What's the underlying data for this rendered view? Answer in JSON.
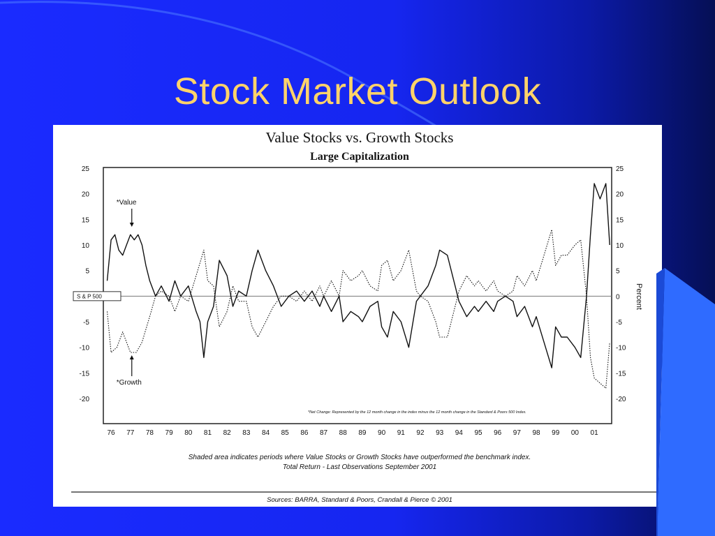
{
  "slide": {
    "title": "Stock Market Outlook",
    "colors": {
      "background": "#1626f0",
      "title": "#ffd36a",
      "accent": "#2b5cff"
    }
  },
  "chart_data": {
    "type": "line",
    "title": "Value Stocks vs. Growth Stocks",
    "subtitle": "Large Capitalization",
    "ylabel": "Percent",
    "ylim": [
      -20,
      25
    ],
    "yticks": [
      25,
      20,
      15,
      10,
      5,
      0,
      -5,
      -10,
      -15,
      -20
    ],
    "xticks": [
      "76",
      "77",
      "78",
      "79",
      "80",
      "81",
      "82",
      "83",
      "84",
      "85",
      "86",
      "87",
      "88",
      "89",
      "90",
      "91",
      "92",
      "93",
      "94",
      "95",
      "96",
      "97",
      "98",
      "99",
      "00",
      "01"
    ],
    "xlim": [
      75.6,
      101.9
    ],
    "baseline_label": "S & P 500",
    "footnote": "*Net Change: Represented by the 12 month change in the index minus the 12 month change in the Standard & Poors 500 Index.",
    "caption_1": "Shaded area indicates periods where Value Stocks or Growth Stocks have outperformed the benchmark index.",
    "caption_2": "Total Return - Last Observations September 2001",
    "source": "Sources:  BARRA, Standard & Poors, Crandall & Pierce © 2001",
    "annotations": [
      {
        "text": "*Value",
        "x": 77.0,
        "y": 13
      },
      {
        "text": "*Growth",
        "x": 77.0,
        "y": -11
      }
    ],
    "grid": false,
    "series": [
      {
        "name": "*Value",
        "style": "solid",
        "x": [
          75.8,
          76.0,
          76.2,
          76.4,
          76.6,
          76.8,
          77.0,
          77.2,
          77.4,
          77.6,
          77.8,
          78.0,
          78.3,
          78.6,
          79.0,
          79.3,
          79.6,
          80.0,
          80.4,
          80.6,
          80.8,
          81.0,
          81.3,
          81.6,
          82.0,
          82.3,
          82.6,
          83.0,
          83.3,
          83.6,
          84.0,
          84.4,
          84.8,
          85.2,
          85.6,
          86.0,
          86.4,
          86.8,
          87.0,
          87.4,
          87.8,
          88.0,
          88.4,
          88.8,
          89.0,
          89.4,
          89.8,
          90.0,
          90.3,
          90.6,
          91.0,
          91.4,
          91.8,
          92.0,
          92.4,
          92.8,
          93.0,
          93.4,
          93.8,
          94.0,
          94.4,
          94.8,
          95.0,
          95.4,
          95.8,
          96.0,
          96.4,
          96.8,
          97.0,
          97.4,
          97.8,
          98.0,
          98.4,
          98.8,
          99.0,
          99.3,
          99.6,
          100.0,
          100.3,
          100.6,
          100.8,
          101.0,
          101.3,
          101.6,
          101.8
        ],
        "y": [
          3,
          11,
          12,
          9,
          8,
          10,
          12,
          11,
          12,
          10,
          6,
          3,
          0,
          2,
          -1,
          3,
          0,
          2,
          -3,
          -5,
          -12,
          -5,
          -2,
          7,
          4,
          -2,
          1,
          0,
          5,
          9,
          5,
          2,
          -2,
          0,
          1,
          -1,
          1,
          -2,
          0,
          -3,
          0,
          -5,
          -3,
          -4,
          -5,
          -2,
          -1,
          -6,
          -8,
          -3,
          -5,
          -10,
          -1,
          0,
          2,
          6,
          9,
          8,
          2,
          -1,
          -4,
          -2,
          -3,
          -1,
          -3,
          -1,
          0,
          -1,
          -4,
          -2,
          -6,
          -4,
          -9,
          -14,
          -6,
          -8,
          -8,
          -10,
          -12,
          0,
          12,
          22,
          19,
          22,
          10
        ]
      },
      {
        "name": "*Growth",
        "style": "dotted",
        "x": [
          75.8,
          76.0,
          76.3,
          76.6,
          77.0,
          77.3,
          77.6,
          78.0,
          78.3,
          78.6,
          79.0,
          79.3,
          79.6,
          80.0,
          80.4,
          80.8,
          81.0,
          81.3,
          81.6,
          82.0,
          82.3,
          82.6,
          83.0,
          83.3,
          83.6,
          84.0,
          84.4,
          84.8,
          85.2,
          85.6,
          86.0,
          86.4,
          86.8,
          87.0,
          87.4,
          87.8,
          88.0,
          88.4,
          88.8,
          89.0,
          89.4,
          89.8,
          90.0,
          90.3,
          90.6,
          91.0,
          91.4,
          91.8,
          92.0,
          92.4,
          92.8,
          93.0,
          93.4,
          93.8,
          94.0,
          94.4,
          94.8,
          95.0,
          95.4,
          95.8,
          96.0,
          96.4,
          96.8,
          97.0,
          97.4,
          97.8,
          98.0,
          98.4,
          98.8,
          99.0,
          99.3,
          99.6,
          100.0,
          100.3,
          100.6,
          100.8,
          101.0,
          101.3,
          101.6,
          101.8
        ],
        "y": [
          -3,
          -11,
          -10,
          -7,
          -11,
          -11,
          -9,
          -4,
          0,
          1,
          0,
          -3,
          0,
          -1,
          4,
          9,
          3,
          2,
          -6,
          -3,
          2,
          -1,
          -1,
          -6,
          -8,
          -5,
          -2,
          0,
          0,
          -1,
          1,
          -1,
          2,
          0,
          3,
          0,
          5,
          3,
          4,
          5,
          2,
          1,
          6,
          7,
          3,
          5,
          9,
          1,
          0,
          -1,
          -5,
          -8,
          -8,
          -2,
          1,
          4,
          2,
          3,
          1,
          3,
          1,
          0,
          1,
          4,
          2,
          5,
          3,
          8,
          13,
          6,
          8,
          8,
          10,
          11,
          0,
          -12,
          -16,
          -17,
          -18,
          -9
        ]
      }
    ]
  }
}
